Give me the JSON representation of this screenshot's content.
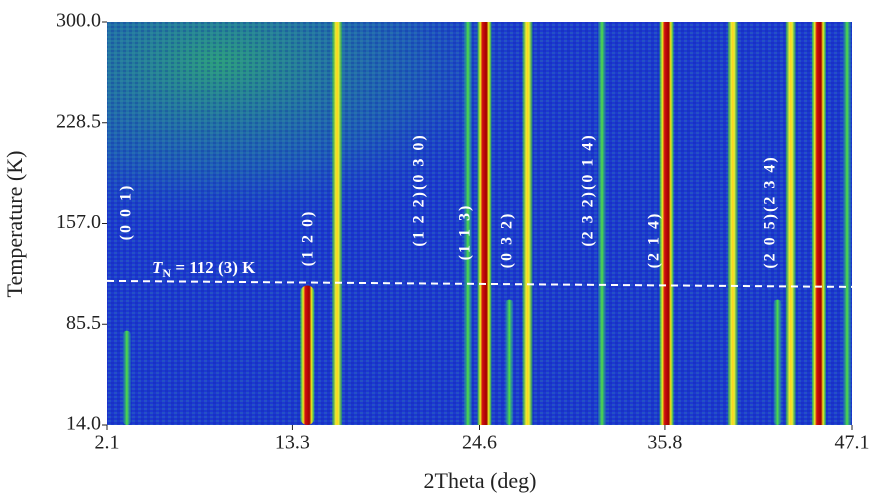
{
  "chart_data": {
    "type": "heatmap",
    "x_label": "2Theta  (deg)",
    "y_label": "Temperature  (K)",
    "xlim": [
      2.1,
      47.1
    ],
    "xticks": [
      2.1,
      13.3,
      24.6,
      35.8,
      47.1
    ],
    "ylim": [
      14.0,
      300.0
    ],
    "yticks": [
      {
        "value": 14,
        "label": "14.0"
      },
      85.5,
      {
        "value": 157,
        "label": "157.0"
      },
      228.5,
      {
        "value": 300,
        "label": "300.0"
      }
    ],
    "peaks": {
      "x": [
        3.3,
        14.2,
        16.0,
        23.9,
        24.9,
        26.4,
        27.5,
        32.0,
        35.9,
        39.9,
        42.6,
        43.4,
        45.1,
        46.8
      ],
      "top": [
        81,
        113,
        300,
        300,
        300,
        103,
        300,
        300,
        300,
        300,
        103,
        300,
        300,
        300
      ],
      "color": [
        "green",
        "red",
        "yellow",
        "green",
        "red",
        "green",
        "yellow",
        "green",
        "red",
        "yellow",
        "green",
        "yellow",
        "red",
        "green"
      ]
    },
    "transition": {
      "value": 112,
      "symbol": "T",
      "subscript": "N",
      "text": " = 112 (3) K"
    },
    "annotations": [
      "(0 0 1)",
      "(1 2 0)",
      "(1 2 2)(0 3 0)",
      "(1 1 3)",
      "(0 3 2)",
      "(2 3 2)(0 1 4)",
      "(2 1 4)",
      "(2 0 5)(2 3 4)"
    ]
  }
}
